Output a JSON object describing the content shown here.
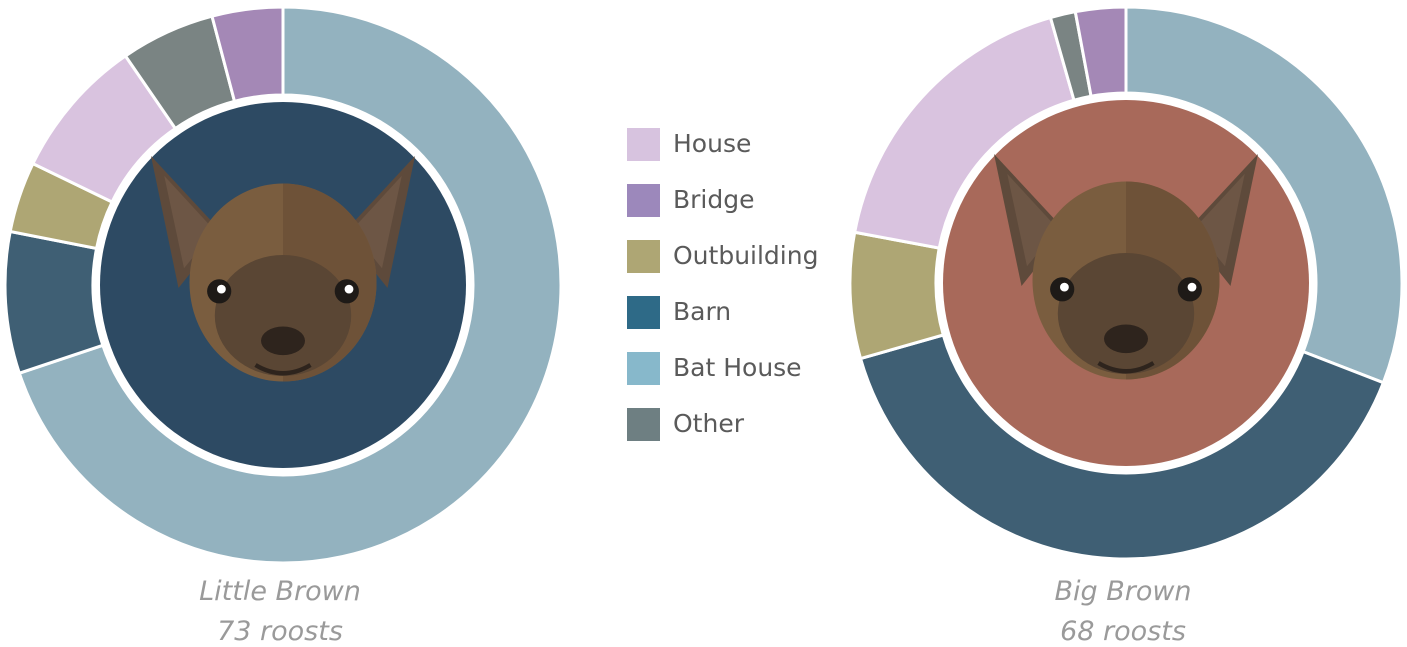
{
  "chart_data": [
    {
      "type": "pie",
      "title": "Little Brown",
      "subtitle": "73 roosts",
      "categories": [
        "Bat House",
        "Barn",
        "Outbuilding",
        "House",
        "Other",
        "Bridge"
      ],
      "values": [
        51,
        6,
        3,
        6,
        4,
        3
      ],
      "colors": [
        "#93b2bf",
        "#3f5f74",
        "#aea674",
        "#d9c3df",
        "#7a8483",
        "#a488b6"
      ],
      "center_color": "#2d4a63"
    },
    {
      "type": "pie",
      "title": "Big Brown",
      "subtitle": "68 roosts",
      "categories": [
        "Bat House",
        "Barn",
        "Outbuilding",
        "House",
        "Other",
        "Bridge"
      ],
      "values": [
        21,
        27,
        5,
        12,
        1,
        2
      ],
      "colors": [
        "#93b2bf",
        "#3f5f74",
        "#aea674",
        "#d9c3df",
        "#7a8483",
        "#a488b6"
      ],
      "center_color": "#a8695a"
    }
  ],
  "legend": [
    {
      "label": "House",
      "color": "#d7c3df"
    },
    {
      "label": "Bridge",
      "color": "#9c88bb"
    },
    {
      "label": "Outbuilding",
      "color": "#aea674"
    },
    {
      "label": "Barn",
      "color": "#2e6a87"
    },
    {
      "label": "Bat House",
      "color": "#87b8cb"
    },
    {
      "label": "Other",
      "color": "#6e7f82"
    }
  ]
}
